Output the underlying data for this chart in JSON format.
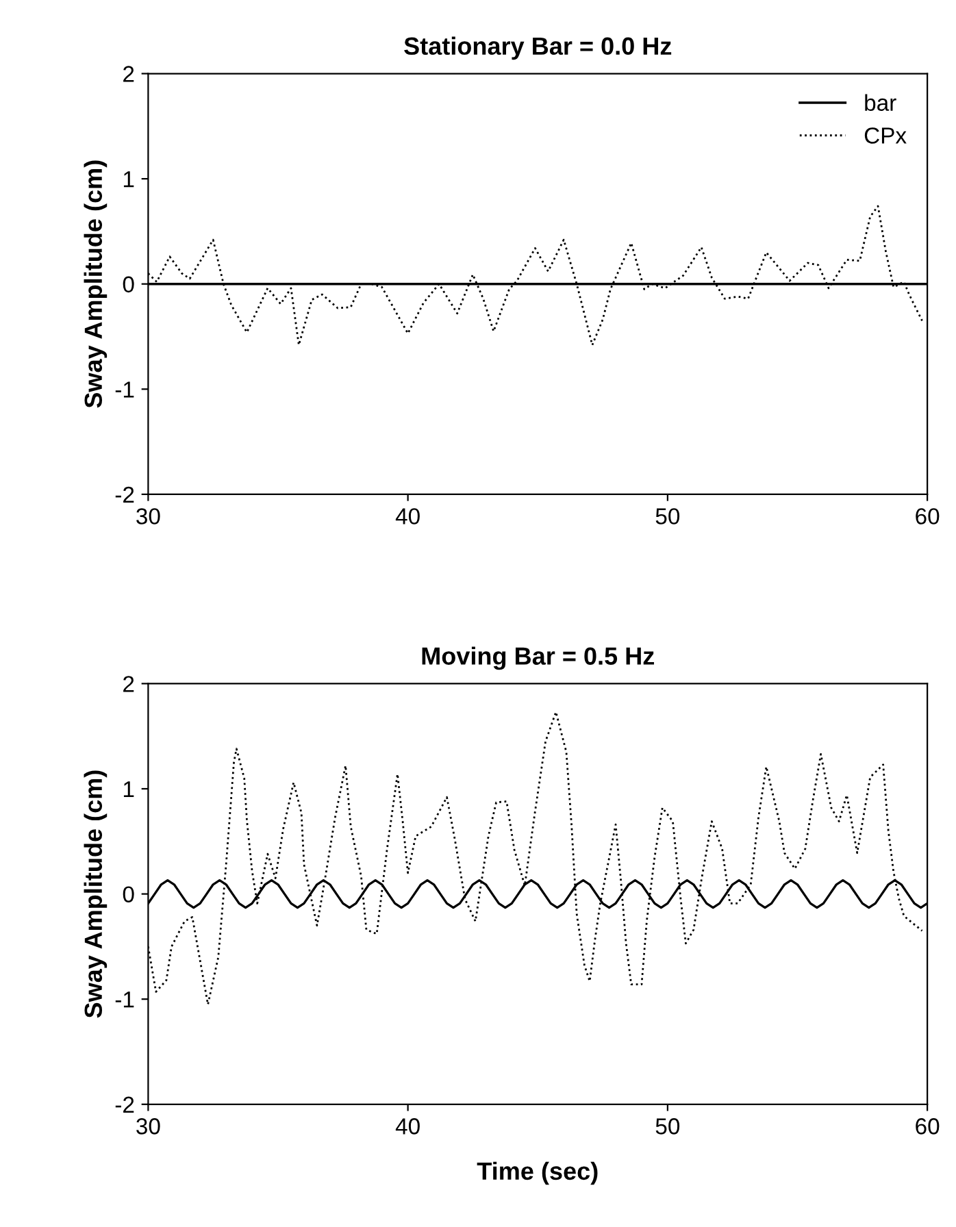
{
  "chart_data": [
    {
      "type": "line",
      "title": "Stationary Bar = 0.0 Hz",
      "ylabel": "Sway Amplitude (cm)",
      "xlim": [
        30,
        60
      ],
      "ylim": [
        -2,
        2
      ],
      "xticks": [
        30,
        40,
        50,
        60
      ],
      "yticks": [
        -2,
        -1,
        0,
        1,
        2
      ],
      "grid": false,
      "legend": "top right",
      "series": [
        {
          "name": "bar",
          "color": "#000000",
          "line_style": "solid",
          "x": [
            30,
            60
          ],
          "values": [
            0,
            0
          ]
        },
        {
          "name": "CPx",
          "color": "#000000",
          "line_style": "dotted",
          "x": [
            30,
            30.33,
            30.83,
            31.3,
            31.6,
            32.5,
            32.9,
            33.2,
            33.8,
            34.6,
            35.1,
            35.5,
            35.8,
            36.3,
            36.7,
            37.3,
            37.8,
            38.2,
            38.6,
            39.0,
            40.0,
            40.6,
            41.2,
            41.9,
            42.5,
            42.9,
            43.3,
            43.9,
            44.2,
            44.9,
            45.4,
            46.0,
            46.5,
            47.1,
            47.5,
            47.8,
            48.6,
            49.1,
            49.4,
            49.9,
            50.6,
            51.3,
            51.7,
            52.2,
            52.7,
            53.1,
            53.8,
            54.7,
            55.4,
            55.8,
            56.2,
            56.9,
            57.4,
            57.8,
            58.1,
            58.4,
            58.7,
            59.1,
            59.3,
            59.5,
            59.8
          ],
          "values": [
            0.1,
            0.02,
            0.26,
            0.1,
            0.05,
            0.42,
            0.0,
            -0.2,
            -0.46,
            -0.04,
            -0.19,
            -0.04,
            -0.58,
            -0.15,
            -0.1,
            -0.23,
            -0.22,
            0.0,
            0.0,
            -0.03,
            -0.47,
            -0.18,
            0.0,
            -0.28,
            0.09,
            -0.14,
            -0.45,
            -0.05,
            0.03,
            0.34,
            0.12,
            0.42,
            0.0,
            -0.58,
            -0.34,
            -0.05,
            0.39,
            -0.05,
            0.0,
            -0.04,
            0.08,
            0.35,
            0.06,
            -0.14,
            -0.12,
            -0.14,
            0.3,
            0.03,
            0.2,
            0.18,
            -0.04,
            0.23,
            0.22,
            0.64,
            0.74,
            0.31,
            -0.03,
            0.02,
            -0.1,
            -0.2,
            -0.35
          ]
        }
      ]
    },
    {
      "type": "line",
      "title": "Moving Bar = 0.5 Hz",
      "xlabel": "Time (sec)",
      "ylabel": "Sway Amplitude (cm)",
      "xlim": [
        30,
        60
      ],
      "ylim": [
        -2,
        2
      ],
      "xticks": [
        30,
        40,
        50,
        60
      ],
      "yticks": [
        -2,
        -1,
        0,
        1,
        2
      ],
      "grid": false,
      "series": [
        {
          "color": "#000000",
          "line_style": "solid",
          "x": [
            30,
            30.25,
            30.5,
            30.75,
            31,
            31.25,
            31.5,
            31.75,
            32,
            32.25,
            32.5,
            32.75,
            33,
            33.25,
            33.5,
            33.75,
            34,
            34.25,
            34.5,
            34.75,
            35,
            35.25,
            35.5,
            35.75,
            36,
            36.25,
            36.5,
            36.75,
            37,
            37.25,
            37.5,
            37.75,
            38,
            38.25,
            38.5,
            38.75,
            39,
            39.25,
            39.5,
            39.75,
            40,
            40.25,
            40.5,
            40.75,
            41,
            41.25,
            41.5,
            41.75,
            42,
            42.25,
            42.5,
            42.75,
            43,
            43.25,
            43.5,
            43.75,
            44,
            44.25,
            44.5,
            44.75,
            45,
            45.25,
            45.5,
            45.75,
            46,
            46.25,
            46.5,
            46.75,
            47,
            47.25,
            47.5,
            47.75,
            48,
            48.25,
            48.5,
            48.75,
            49,
            49.25,
            49.5,
            49.75,
            50,
            50.25,
            50.5,
            50.75,
            51,
            51.25,
            51.5,
            51.75,
            52,
            52.25,
            52.5,
            52.75,
            53,
            53.25,
            53.5,
            53.75,
            54,
            54.25,
            54.5,
            54.75,
            55,
            55.25,
            55.5,
            55.75,
            56,
            56.25,
            56.5,
            56.75,
            57,
            57.25,
            57.5,
            57.75,
            58,
            58.25,
            58.5,
            58.75,
            59,
            59.25,
            59.5,
            59.75,
            60
          ],
          "values": [
            -0.09,
            0,
            0.09,
            0.13,
            0.09,
            0,
            -0.09,
            -0.13,
            -0.09,
            0,
            0.09,
            0.13,
            0.09,
            0,
            -0.09,
            -0.13,
            -0.09,
            0,
            0.09,
            0.13,
            0.09,
            0,
            -0.09,
            -0.13,
            -0.09,
            0,
            0.09,
            0.13,
            0.09,
            0,
            -0.09,
            -0.13,
            -0.09,
            0,
            0.09,
            0.13,
            0.09,
            0,
            -0.09,
            -0.13,
            -0.09,
            0,
            0.09,
            0.13,
            0.09,
            0,
            -0.09,
            -0.13,
            -0.09,
            0,
            0.09,
            0.13,
            0.09,
            0,
            -0.09,
            -0.13,
            -0.09,
            0,
            0.09,
            0.13,
            0.09,
            0,
            -0.09,
            -0.13,
            -0.09,
            0,
            0.09,
            0.13,
            0.09,
            0,
            -0.09,
            -0.13,
            -0.09,
            0,
            0.09,
            0.13,
            0.09,
            0,
            -0.09,
            -0.13,
            -0.09,
            0,
            0.09,
            0.13,
            0.09,
            0,
            -0.09,
            -0.13,
            -0.09,
            0,
            0.09,
            0.13,
            0.09,
            0,
            -0.09,
            -0.13,
            -0.09,
            0,
            0.09,
            0.13,
            0.09,
            0,
            -0.09,
            -0.13,
            -0.09,
            0,
            0.09,
            0.13,
            0.09,
            0,
            -0.09,
            -0.13,
            -0.09,
            0,
            0.09,
            0.13,
            0.09,
            0,
            -0.09,
            -0.13,
            -0.09
          ]
        },
        {
          "color": "#000000",
          "line_style": "dotted",
          "x": [
            30,
            30.3,
            30.7,
            30.9,
            31.4,
            31.7,
            32.3,
            32.7,
            33.0,
            33.3,
            33.4,
            33.7,
            33.8,
            34.0,
            34.2,
            34.6,
            34.9,
            35.2,
            35.6,
            35.9,
            36.0,
            36.5,
            36.8,
            37.2,
            37.6,
            37.8,
            38.2,
            38.4,
            38.8,
            39.2,
            39.6,
            39.8,
            40.0,
            40.3,
            40.9,
            41.5,
            41.8,
            42.2,
            42.6,
            43.1,
            43.4,
            43.8,
            44.1,
            44.5,
            44.9,
            45.3,
            45.7,
            46.1,
            46.3,
            46.5,
            46.8,
            47.0,
            47.2,
            47.4,
            48.0,
            48.2,
            48.4,
            48.6,
            49.0,
            49.2,
            49.5,
            49.8,
            50.2,
            50.5,
            50.7,
            51.0,
            51.3,
            51.7,
            52.1,
            52.4,
            52.7,
            53.2,
            53.5,
            53.8,
            54.3,
            54.5,
            54.9,
            55.3,
            55.6,
            55.9,
            56.3,
            56.6,
            56.9,
            57.3,
            57.8,
            58.3,
            58.5,
            58.7,
            58.9,
            59.1,
            59.8
          ],
          "values": [
            -0.5,
            -0.93,
            -0.82,
            -0.5,
            -0.26,
            -0.22,
            -1.05,
            -0.6,
            0.28,
            1.25,
            1.38,
            1.1,
            0.7,
            0.22,
            -0.09,
            0.38,
            0.15,
            0.62,
            1.06,
            0.77,
            0.28,
            -0.3,
            0.13,
            0.73,
            1.22,
            0.64,
            0.17,
            -0.34,
            -0.38,
            0.43,
            1.14,
            0.69,
            0.2,
            0.55,
            0.64,
            0.92,
            0.53,
            -0.05,
            -0.26,
            0.55,
            0.87,
            0.88,
            0.42,
            0.08,
            0.79,
            1.45,
            1.73,
            1.35,
            0.66,
            -0.19,
            -0.68,
            -0.83,
            -0.44,
            -0.1,
            0.66,
            0.13,
            -0.47,
            -0.86,
            -0.86,
            -0.25,
            0.35,
            0.82,
            0.69,
            -0.04,
            -0.47,
            -0.34,
            0.13,
            0.69,
            0.43,
            -0.09,
            -0.09,
            0.09,
            0.73,
            1.21,
            0.69,
            0.39,
            0.24,
            0.43,
            0.9,
            1.33,
            0.82,
            0.69,
            0.94,
            0.39,
            1.11,
            1.23,
            0.6,
            0.21,
            -0.04,
            -0.21,
            -0.35
          ]
        }
      ]
    }
  ]
}
